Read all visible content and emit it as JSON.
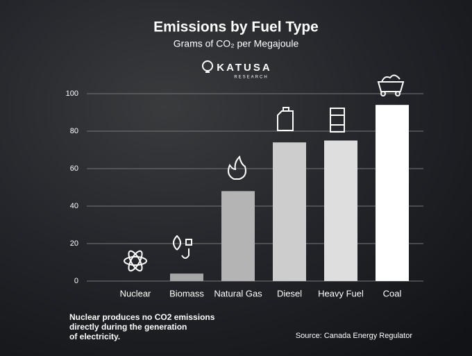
{
  "chart_data": {
    "type": "bar",
    "title": "Emissions by Fuel Type",
    "subtitle": "Grams of CO₂ per Megajoule",
    "logo": {
      "name": "KATUSA",
      "tagline": "RESEARCH"
    },
    "categories": [
      "Nuclear",
      "Biomass",
      "Natural Gas",
      "Diesel",
      "Heavy Fuel",
      "Coal"
    ],
    "values": [
      0,
      4,
      48,
      74,
      75,
      94
    ],
    "colors": [
      "#9a9a9a",
      "#a6a6a6",
      "#b4b4b4",
      "#cdcdcd",
      "#dedede",
      "#ffffff"
    ],
    "ylim": [
      0,
      100
    ],
    "yticks": [
      0,
      20,
      40,
      60,
      80,
      100
    ],
    "grid": true,
    "note": [
      "Nuclear produces no CO2 emissions",
      "directly during the generation",
      "of electricity."
    ],
    "source": "Source: Canada Energy Regulator"
  }
}
